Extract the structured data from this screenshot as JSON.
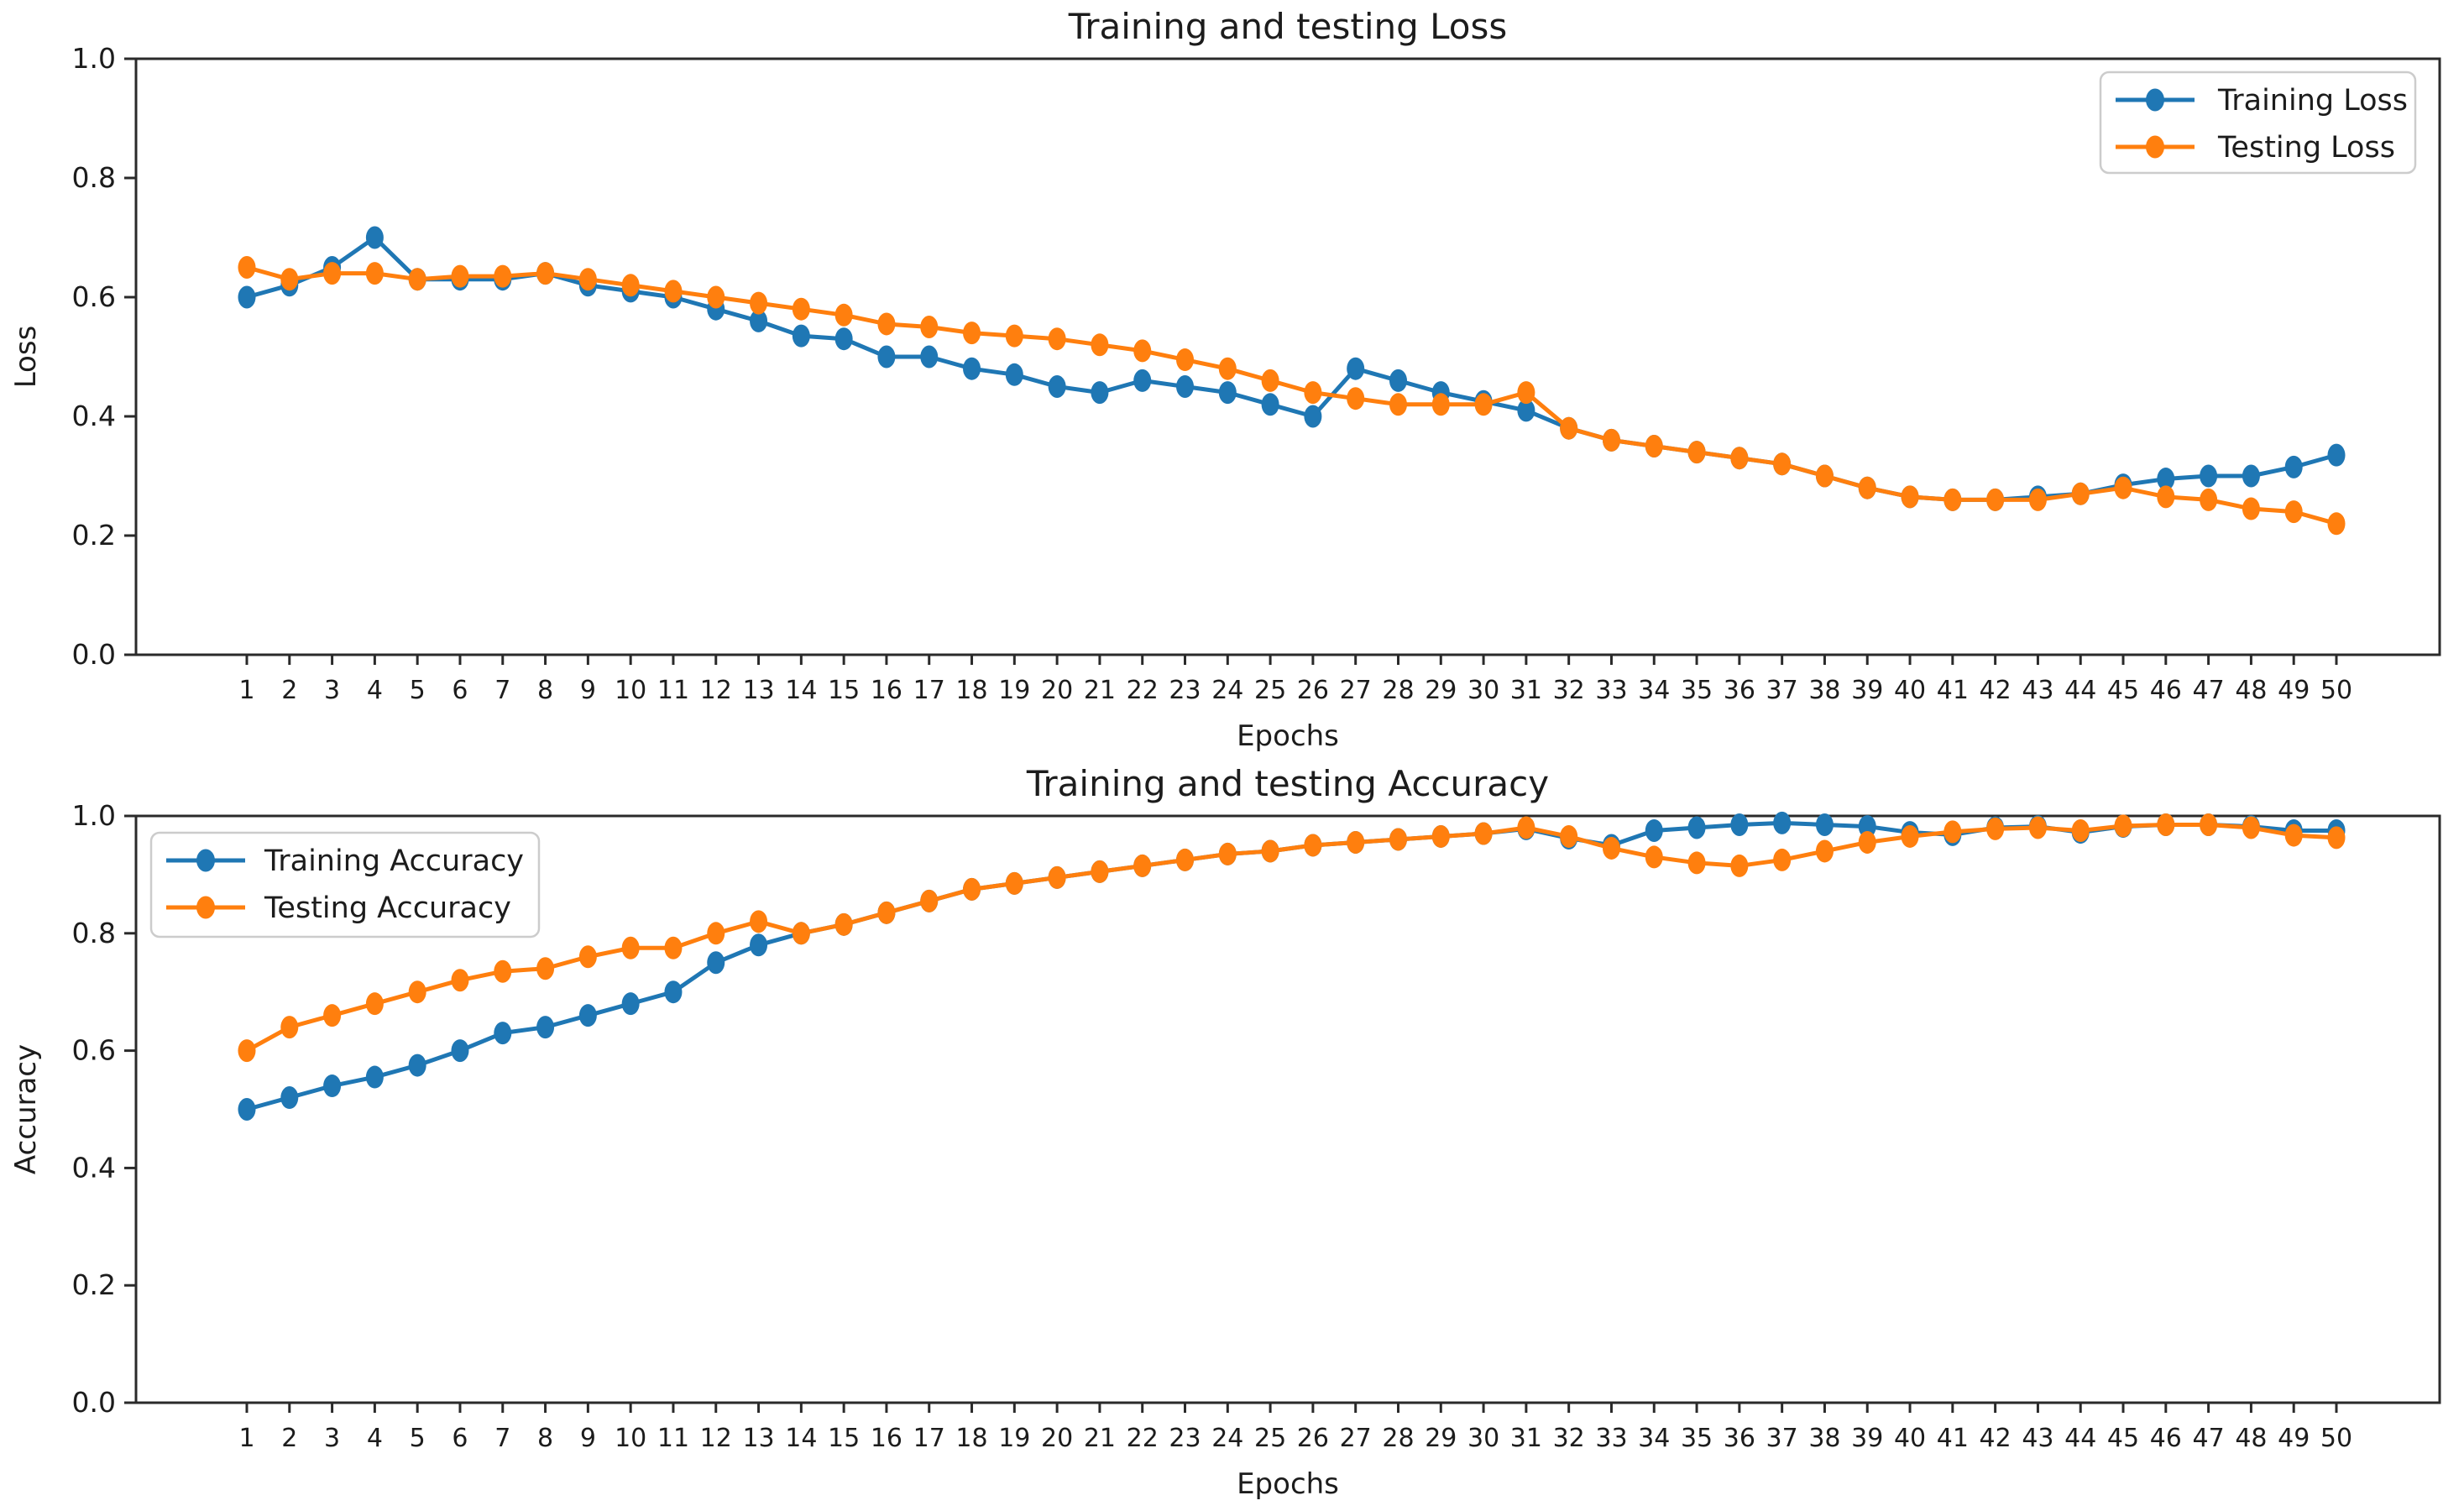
{
  "figure": {
    "background": "#ffffff"
  },
  "colors": {
    "training": "#1f77b4",
    "testing": "#ff7f0e",
    "text": "#1c1c1c",
    "spine": "#2a2a2a",
    "legend_border": "#cccccc"
  },
  "chart_data": [
    {
      "type": "line",
      "title": "Training and testing Loss",
      "xlabel": "Epochs",
      "ylabel": "Loss",
      "ylim": [
        0.0,
        1.0
      ],
      "yticks": [
        0.0,
        0.2,
        0.4,
        0.6,
        0.8,
        1.0
      ],
      "grid": false,
      "legend_position": "upper right",
      "x": [
        1,
        2,
        3,
        4,
        5,
        6,
        7,
        8,
        9,
        10,
        11,
        12,
        13,
        14,
        15,
        16,
        17,
        18,
        19,
        20,
        21,
        22,
        23,
        24,
        25,
        26,
        27,
        28,
        29,
        30,
        31,
        32,
        33,
        34,
        35,
        36,
        37,
        38,
        39,
        40,
        41,
        42,
        43,
        44,
        45,
        46,
        47,
        48,
        49,
        50
      ],
      "series": [
        {
          "name": "Training  Loss",
          "color": "#1f77b4",
          "values": [
            0.6,
            0.62,
            0.65,
            0.7,
            0.63,
            0.63,
            0.63,
            0.64,
            0.62,
            0.61,
            0.6,
            0.58,
            0.56,
            0.535,
            0.53,
            0.5,
            0.5,
            0.48,
            0.47,
            0.45,
            0.44,
            0.46,
            0.45,
            0.44,
            0.42,
            0.4,
            0.48,
            0.46,
            0.44,
            0.425,
            0.41,
            0.38,
            0.36,
            0.35,
            0.34,
            0.33,
            0.32,
            0.3,
            0.28,
            0.265,
            0.26,
            0.26,
            0.265,
            0.27,
            0.285,
            0.295,
            0.3,
            0.3,
            0.315,
            0.335
          ]
        },
        {
          "name": "Testing Loss",
          "color": "#ff7f0e",
          "values": [
            0.65,
            0.63,
            0.64,
            0.64,
            0.63,
            0.635,
            0.635,
            0.64,
            0.63,
            0.62,
            0.61,
            0.6,
            0.59,
            0.58,
            0.57,
            0.555,
            0.55,
            0.54,
            0.535,
            0.53,
            0.52,
            0.51,
            0.495,
            0.48,
            0.46,
            0.44,
            0.43,
            0.42,
            0.42,
            0.42,
            0.44,
            0.38,
            0.36,
            0.35,
            0.34,
            0.33,
            0.32,
            0.3,
            0.28,
            0.265,
            0.26,
            0.26,
            0.26,
            0.27,
            0.28,
            0.265,
            0.26,
            0.245,
            0.24,
            0.22
          ]
        }
      ]
    },
    {
      "type": "line",
      "title": "Training and testing Accuracy",
      "xlabel": "Epochs",
      "ylabel": "Accuracy",
      "ylim": [
        0.0,
        1.0
      ],
      "yticks": [
        0.0,
        0.2,
        0.4,
        0.6,
        0.8,
        1.0
      ],
      "grid": false,
      "legend_position": "upper left",
      "x": [
        1,
        2,
        3,
        4,
        5,
        6,
        7,
        8,
        9,
        10,
        11,
        12,
        13,
        14,
        15,
        16,
        17,
        18,
        19,
        20,
        21,
        22,
        23,
        24,
        25,
        26,
        27,
        28,
        29,
        30,
        31,
        32,
        33,
        34,
        35,
        36,
        37,
        38,
        39,
        40,
        41,
        42,
        43,
        44,
        45,
        46,
        47,
        48,
        49,
        50
      ],
      "series": [
        {
          "name": "Training  Accuracy",
          "color": "#1f77b4",
          "values": [
            0.5,
            0.52,
            0.54,
            0.555,
            0.575,
            0.6,
            0.63,
            0.64,
            0.66,
            0.68,
            0.7,
            0.75,
            0.78,
            0.8,
            0.815,
            0.835,
            0.855,
            0.875,
            0.885,
            0.895,
            0.905,
            0.915,
            0.925,
            0.935,
            0.94,
            0.95,
            0.955,
            0.96,
            0.965,
            0.97,
            0.978,
            0.962,
            0.95,
            0.975,
            0.98,
            0.985,
            0.988,
            0.985,
            0.982,
            0.972,
            0.968,
            0.98,
            0.982,
            0.972,
            0.982,
            0.985,
            0.985,
            0.982,
            0.975,
            0.975
          ]
        },
        {
          "name": "Testing Accuracy",
          "color": "#ff7f0e",
          "values": [
            0.6,
            0.64,
            0.66,
            0.68,
            0.7,
            0.72,
            0.735,
            0.74,
            0.76,
            0.775,
            0.775,
            0.8,
            0.82,
            0.8,
            0.815,
            0.835,
            0.855,
            0.875,
            0.885,
            0.895,
            0.905,
            0.915,
            0.925,
            0.935,
            0.94,
            0.95,
            0.955,
            0.96,
            0.965,
            0.97,
            0.98,
            0.965,
            0.945,
            0.93,
            0.92,
            0.915,
            0.925,
            0.94,
            0.955,
            0.965,
            0.973,
            0.978,
            0.98,
            0.975,
            0.983,
            0.985,
            0.985,
            0.98,
            0.967,
            0.963
          ]
        }
      ]
    }
  ]
}
